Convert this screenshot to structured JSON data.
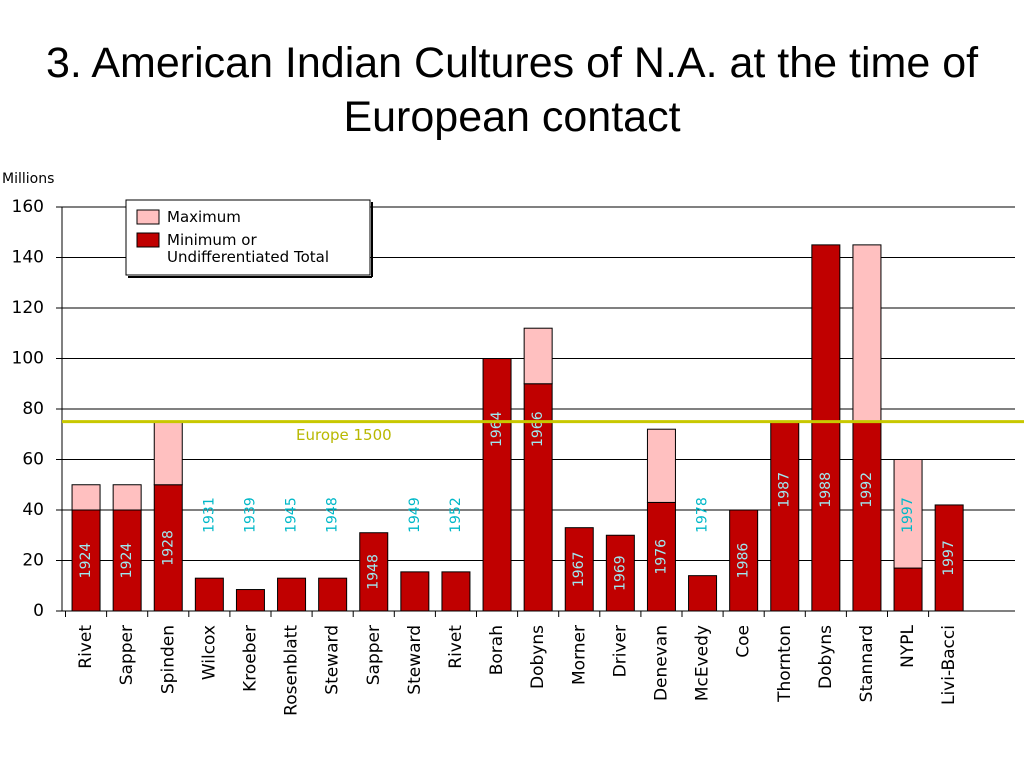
{
  "chart_data": {
    "type": "bar",
    "title": "3. American Indian Cultures of N.A. at the time of European contact",
    "y_label": "Millions",
    "categories": [
      "Rivet",
      "Sapper",
      "Spinden",
      "Wilcox",
      "Kroeber",
      "Rosenblatt",
      "Steward",
      "Sapper",
      "Steward",
      "Rivet",
      "Borah",
      "Dobyns",
      "Morner",
      "Driver",
      "Denevan",
      "McEvedy",
      "Coe",
      "Thornton",
      "Dobyns",
      "Stannard",
      "NYPL",
      "Livi-Bacci"
    ],
    "years": [
      "1924",
      "1924",
      "1928",
      "1931",
      "1939",
      "1945",
      "1948",
      "1948",
      "1949",
      "1952",
      "1964",
      "1966",
      "1967",
      "1969",
      "1976",
      "1978",
      "1986",
      "1987",
      "1988",
      "1992",
      "1997",
      "1997"
    ],
    "series": [
      {
        "name": "Maximum",
        "color": "#ffc0c0",
        "values": [
          10,
          10,
          25,
          0,
          0,
          0,
          0,
          0,
          0,
          0,
          0,
          22,
          0,
          0,
          29,
          0,
          0,
          0,
          0,
          70,
          43,
          0
        ]
      },
      {
        "name": "Minimum or Undifferentiated Total",
        "color": "#c00000",
        "values": [
          40,
          40,
          50,
          13,
          8.5,
          13,
          13,
          31,
          15.5,
          15.5,
          100,
          90,
          33,
          30,
          43,
          14,
          40,
          75,
          145,
          75,
          17,
          42
        ]
      }
    ],
    "reference": {
      "value": 75,
      "label": "Europe 1500",
      "color": "#c8c800"
    },
    "ylim": [
      0,
      160
    ],
    "yticks": [
      0,
      20,
      40,
      60,
      80,
      100,
      120,
      140,
      160
    ],
    "grid": true,
    "stacked": true
  }
}
